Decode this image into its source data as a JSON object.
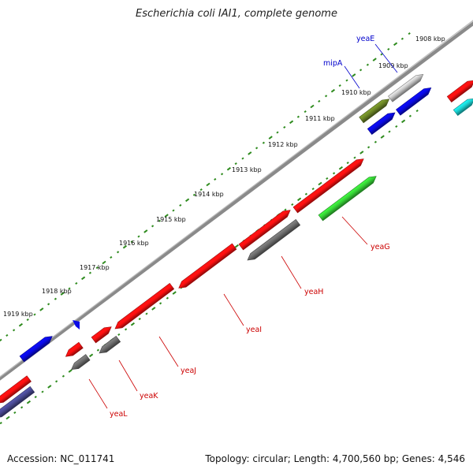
{
  "title": "Escherichia coli IAI1, complete genome",
  "footer": {
    "accession": "Accession: NC_011741",
    "summary": "Topology: circular; Length: 4,700,560 bp; Genes: 4,546"
  },
  "colors": {
    "backbone": "#8a8a8a",
    "tick": "#2e8b1e",
    "label_red": "#cc0000",
    "label_blue": "#0000cc",
    "red": "#ff1010",
    "gray": "#6c6c6c",
    "blue": "#0a0ae6",
    "green": "#36d236",
    "olive": "#6b8526",
    "silver": "#c4c4c4",
    "cyan": "#1ad0d0",
    "slate": "#484890"
  },
  "scale": {
    "unit": "kbp",
    "ticks": [
      {
        "label": "1908 kbp"
      },
      {
        "label": "1909 kbp"
      },
      {
        "label": "1910 kbp"
      },
      {
        "label": "1911 kbp"
      },
      {
        "label": "1912 kbp"
      },
      {
        "label": "1913 kbp"
      },
      {
        "label": "1914 kbp"
      },
      {
        "label": "1915 kbp"
      },
      {
        "label": "1916 kbp"
      },
      {
        "label": "1917 kbp"
      },
      {
        "label": "1918 kbp"
      },
      {
        "label": "1919 kbp"
      }
    ]
  },
  "genes": [
    {
      "name": "yeaE",
      "color_key": "silver",
      "label_color": "label_blue"
    },
    {
      "name": "mipA",
      "color_key": "olive",
      "label_color": "label_blue"
    },
    {
      "name": "yeaG",
      "color_key": "green",
      "label_color": "label_red"
    },
    {
      "name": "yeaH",
      "color_key": "gray",
      "label_color": "label_red"
    },
    {
      "name": "yeaI",
      "color_key": "red",
      "label_color": "label_red"
    },
    {
      "name": "yeaJ",
      "color_key": "red",
      "label_color": "label_red"
    },
    {
      "name": "yeaK",
      "color_key": "gray",
      "label_color": "label_red"
    },
    {
      "name": "yeaL",
      "color_key": "gray",
      "label_color": "label_red"
    }
  ]
}
